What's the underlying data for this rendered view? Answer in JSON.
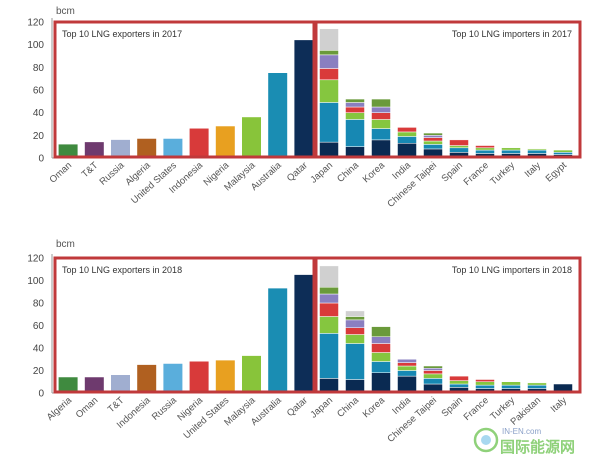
{
  "colors": {
    "frame": "#c0393b",
    "stack_palette": [
      "#0a2a52",
      "#1788b3",
      "#85c63f",
      "#d93a3a",
      "#8a7fc0",
      "#6a9a3a",
      "#d0d0d0"
    ]
  },
  "watermark": {
    "text": "国际能源网",
    "small": "IN-EN.com"
  },
  "chart_data": [
    {
      "type": "bar",
      "ylabel": "bcm",
      "ylim": [
        0,
        120
      ],
      "yticks": [
        0,
        20,
        40,
        60,
        80,
        100,
        120
      ],
      "exporters": {
        "title": "Top 10 LNG exporters in 2017",
        "categories": [
          "Oman",
          "T&T",
          "Russia",
          "Algeria",
          "United States",
          "Indonesia",
          "Nigeria",
          "Malaysia",
          "Australia",
          "Qatar"
        ],
        "values": [
          12,
          14,
          16,
          17,
          17,
          26,
          28,
          36,
          75,
          104
        ],
        "colors": [
          "#3f8a3f",
          "#6e3a6e",
          "#a0aed0",
          "#b06020",
          "#5aaedc",
          "#d83a3a",
          "#e8a020",
          "#88c43a",
          "#1a8db3",
          "#0d2d57"
        ]
      },
      "importers": {
        "title": "Top 10 LNG importers in 2017",
        "categories": [
          "Japan",
          "China",
          "Korea",
          "India",
          "Chinese Taipei",
          "Spain",
          "France",
          "Turkey",
          "Italy",
          "Egypt"
        ],
        "stacks": [
          [
            14,
            35,
            20,
            10,
            12,
            4,
            19
          ],
          [
            10,
            24,
            6,
            5,
            4,
            3
          ],
          [
            16,
            10,
            8,
            6,
            5,
            7
          ],
          [
            13,
            6,
            4,
            4
          ],
          [
            8,
            4,
            3,
            3,
            2,
            2
          ],
          [
            5,
            4,
            2,
            5
          ],
          [
            4,
            3,
            2,
            2
          ],
          [
            4,
            3,
            2
          ],
          [
            4,
            3,
            1
          ],
          [
            3,
            2,
            2
          ]
        ]
      }
    },
    {
      "type": "bar",
      "ylabel": "bcm",
      "ylim": [
        0,
        120
      ],
      "yticks": [
        0,
        20,
        40,
        60,
        80,
        100,
        120
      ],
      "exporters": {
        "title": "Top 10 LNG exporters in 2018",
        "categories": [
          "Algeria",
          "Oman",
          "T&T",
          "Indonesia",
          "Russia",
          "Nigeria",
          "United States",
          "Malaysia",
          "Australia",
          "Qatar"
        ],
        "values": [
          14,
          14,
          16,
          25,
          26,
          28,
          29,
          33,
          93,
          105
        ],
        "colors": [
          "#3f8a3f",
          "#6e3a6e",
          "#a0aed0",
          "#b06020",
          "#5aaedc",
          "#d83a3a",
          "#e8a020",
          "#88c43a",
          "#1a8db3",
          "#0d2d57"
        ]
      },
      "importers": {
        "title": "Top 10 LNG importers in 2018",
        "categories": [
          "Japan",
          "China",
          "Korea",
          "India",
          "Chinese Taipei",
          "Spain",
          "France",
          "Turkey",
          "Pakistan",
          "Italy"
        ],
        "stacks": [
          [
            13,
            40,
            15,
            12,
            8,
            6,
            19
          ],
          [
            12,
            32,
            8,
            6,
            7,
            3,
            5
          ],
          [
            18,
            10,
            8,
            8,
            6,
            9
          ],
          [
            15,
            5,
            4,
            3,
            3
          ],
          [
            8,
            5,
            4,
            3,
            2,
            2
          ],
          [
            5,
            3,
            3,
            4
          ],
          [
            4,
            3,
            3,
            2
          ],
          [
            4,
            3,
            3
          ],
          [
            4,
            3,
            2
          ],
          [
            8
          ]
        ]
      }
    }
  ]
}
